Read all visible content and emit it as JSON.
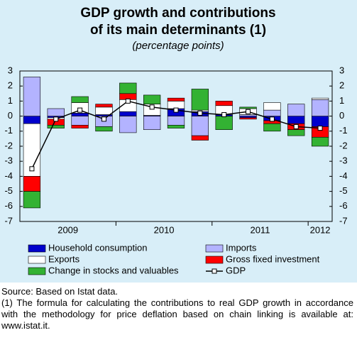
{
  "chart_data": {
    "type": "stacked-bar-line",
    "title": [
      "GDP growth and contributions",
      "of its main determinants (1)"
    ],
    "subtitle": "(percentage points)",
    "categories": [
      null,
      null,
      null,
      null,
      null,
      null,
      null,
      null,
      null,
      null,
      null,
      null,
      null
    ],
    "year_groups": [
      {
        "label": "2009",
        "start": 0,
        "end": 3
      },
      {
        "label": "2010",
        "start": 4,
        "end": 7
      },
      {
        "label": "2011",
        "start": 8,
        "end": 11
      },
      {
        "label": "2012",
        "start": 12,
        "end": 12
      }
    ],
    "series": [
      {
        "name": "Household consumption",
        "kind": "bar",
        "color": "#0000cc",
        "values": [
          -0.5,
          -0.1,
          0.2,
          0.1,
          0.3,
          0.05,
          0.5,
          0.3,
          0.1,
          -0.1,
          -0.3,
          -0.5,
          -0.7
        ]
      },
      {
        "name": "Imports",
        "kind": "bar",
        "color": "#b3b3ff",
        "values": [
          2.6,
          0.5,
          -0.6,
          -0.7,
          -1.1,
          -0.9,
          -0.6,
          -1.3,
          0,
          0.1,
          0.4,
          0.8,
          1.1
        ]
      },
      {
        "name": "Exports",
        "kind": "bar",
        "color": "#ffffff",
        "values": [
          -3.5,
          -0.1,
          0.7,
          0.5,
          0.8,
          0.75,
          0.5,
          0.1,
          0.6,
          0.4,
          0.5,
          0,
          0.1
        ]
      },
      {
        "name": "Gross fixed investment",
        "kind": "bar",
        "color": "#ff0000",
        "values": [
          -1.0,
          -0.4,
          -0.2,
          0.2,
          0.4,
          0,
          0.2,
          -0.3,
          0.3,
          -0.1,
          -0.2,
          -0.4,
          -0.7
        ]
      },
      {
        "name": "Change in stocks and valuables",
        "kind": "bar",
        "color": "#33b233",
        "values": [
          -1.1,
          -0.2,
          0.4,
          -0.3,
          0.7,
          0.6,
          -0.2,
          1.4,
          -0.9,
          0.1,
          -0.5,
          -0.4,
          -0.6
        ]
      },
      {
        "name": "GDP",
        "kind": "line",
        "color": "#000000",
        "values": [
          -3.5,
          -0.2,
          0.4,
          -0.2,
          1.0,
          0.6,
          0.4,
          0.2,
          0.1,
          0.3,
          -0.2,
          -0.7,
          -0.8
        ]
      }
    ],
    "ylim": [
      -7,
      3
    ],
    "yticks": [
      -7,
      -6,
      -5,
      -4,
      -3,
      -2,
      -1,
      0,
      1,
      2,
      3
    ],
    "y2lim": [
      -7,
      3
    ],
    "y2ticks": [
      -7,
      -6,
      -5,
      -4,
      -3,
      -2,
      -1,
      0,
      1,
      2,
      3
    ],
    "grid": false,
    "source": "Source: Based on Istat data.",
    "note": "(1) The formula for calculating the contributions to real GDP growth in accordance with the methodology for price deflation based on chain linking is available at: www.istat.it."
  }
}
